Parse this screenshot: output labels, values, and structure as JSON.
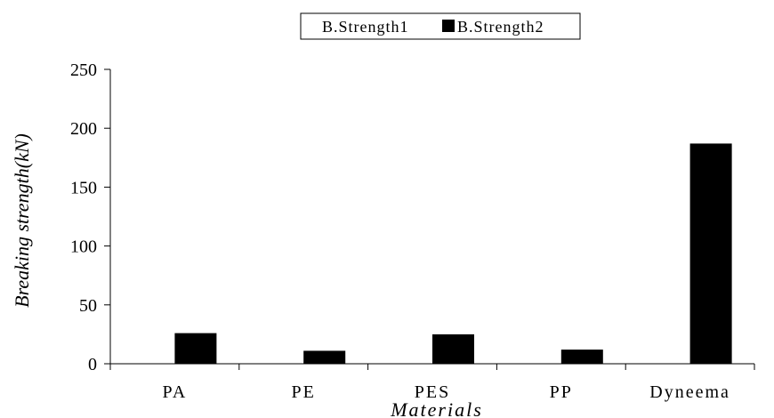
{
  "chart_data": {
    "type": "bar",
    "title": "",
    "xlabel": "Materials",
    "ylabel": "Breaking strength(kN)",
    "categories": [
      "PA",
      "PE",
      "PES",
      "PP",
      "Dyneema"
    ],
    "series": [
      {
        "name": "B.Strength1",
        "values": [
          0,
          0,
          0,
          0,
          0
        ],
        "color": "#ffffff"
      },
      {
        "name": "B.Strength2",
        "values": [
          26,
          11,
          25,
          12,
          187
        ],
        "color": "#000000"
      }
    ],
    "ylim": [
      0,
      250
    ],
    "yticks": [
      0,
      50,
      100,
      150,
      200,
      250
    ],
    "grid": false,
    "legend_position": "top-center"
  }
}
